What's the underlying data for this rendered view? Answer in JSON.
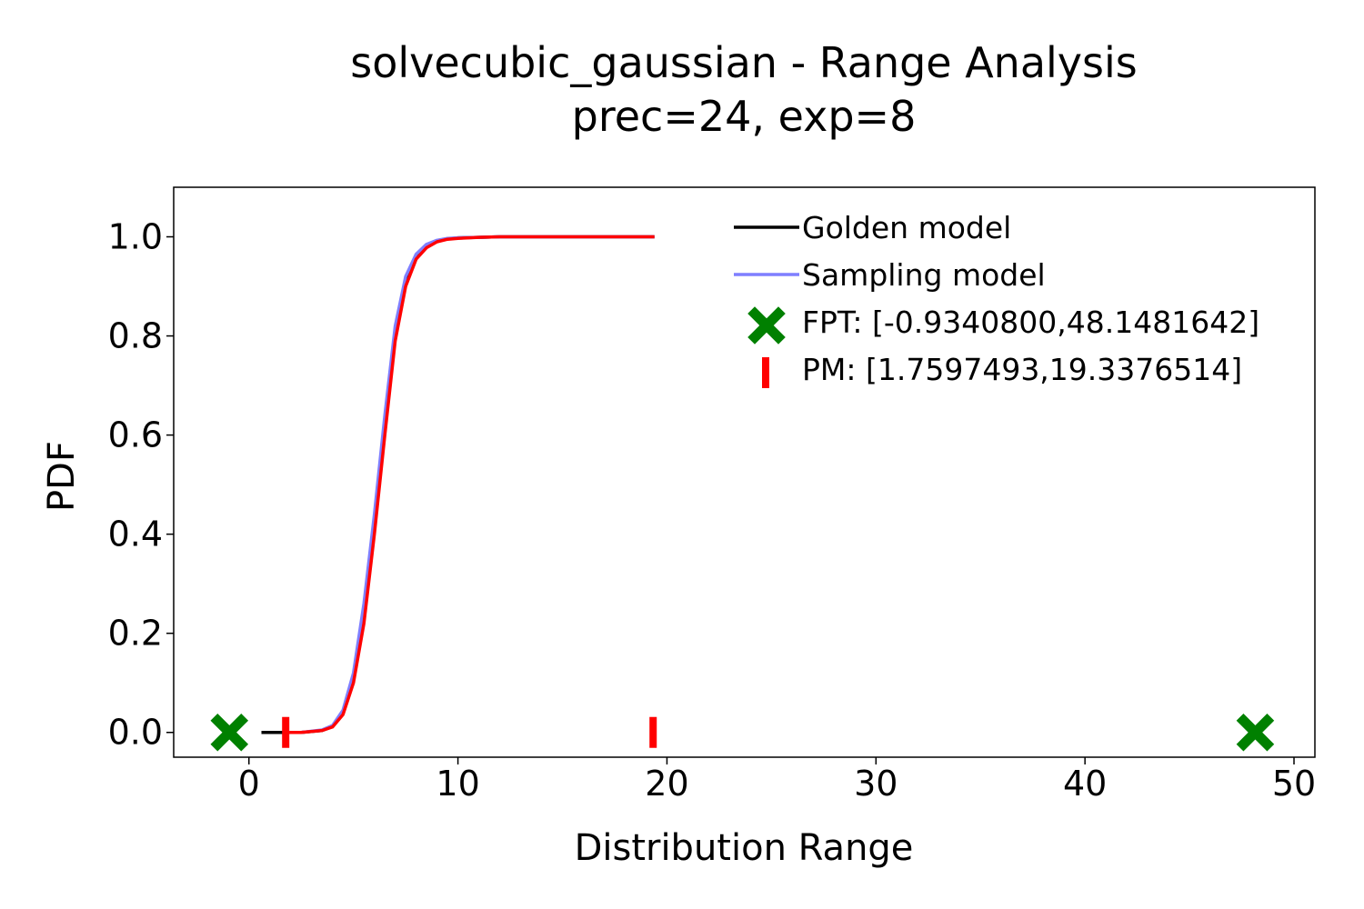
{
  "chart_data": {
    "type": "line",
    "title": "solvecubic_gaussian - Range Analysis",
    "subtitle": "prec=24, exp=8",
    "xlabel": "Distribution Range",
    "ylabel": "PDF",
    "xlim": [
      -3.6,
      51.0
    ],
    "ylim": [
      -0.05,
      1.1
    ],
    "xticks": [
      0,
      10,
      20,
      30,
      40,
      50
    ],
    "xtick_labels": [
      "0",
      "10",
      "20",
      "30",
      "40",
      "50"
    ],
    "yticks": [
      0.0,
      0.2,
      0.4,
      0.6,
      0.8,
      1.0
    ],
    "ytick_labels": [
      "0.0",
      "0.2",
      "0.4",
      "0.6",
      "0.8",
      "1.0"
    ],
    "grid": false,
    "legend_position": "top-right",
    "series": [
      {
        "name": "Golden model",
        "color": "#000000",
        "x": [
          0.6,
          1.5,
          2.5,
          3.5,
          4.0,
          4.5,
          5.0,
          5.5,
          6.0,
          6.5,
          7.0,
          7.5,
          8.0,
          8.5,
          9.0,
          9.5,
          10.0,
          11.0,
          12.0,
          14.0,
          16.0,
          19.4
        ],
        "y": [
          0.0,
          0.0,
          0.0,
          0.004,
          0.012,
          0.04,
          0.11,
          0.24,
          0.42,
          0.62,
          0.8,
          0.91,
          0.96,
          0.982,
          0.991,
          0.996,
          0.998,
          0.999,
          1.0,
          1.0,
          1.0,
          1.0
        ]
      },
      {
        "name": "Sampling model",
        "color": "#7f7fff",
        "x": [
          1.8,
          2.5,
          3.5,
          4.0,
          4.5,
          5.0,
          5.5,
          6.0,
          6.5,
          7.0,
          7.5,
          8.0,
          8.5,
          9.0,
          9.5,
          10.0,
          11.0,
          12.0,
          14.0,
          16.0,
          19.4
        ],
        "y": [
          0.0,
          0.0,
          0.005,
          0.014,
          0.045,
          0.12,
          0.26,
          0.44,
          0.64,
          0.82,
          0.92,
          0.965,
          0.985,
          0.993,
          0.997,
          0.998,
          0.999,
          1.0,
          1.0,
          1.0,
          1.0
        ]
      },
      {
        "name": "",
        "color": "#ff0000",
        "x": [
          1.8,
          2.5,
          3.5,
          4.0,
          4.5,
          5.0,
          5.5,
          6.0,
          6.5,
          7.0,
          7.5,
          8.0,
          8.5,
          9.0,
          9.5,
          10.0,
          11.0,
          12.0,
          14.0,
          16.0,
          19.4
        ],
        "y": [
          0.0,
          0.0,
          0.004,
          0.011,
          0.036,
          0.1,
          0.22,
          0.4,
          0.6,
          0.79,
          0.9,
          0.955,
          0.978,
          0.99,
          0.995,
          0.997,
          0.999,
          1.0,
          1.0,
          1.0,
          1.0
        ]
      }
    ],
    "markers": [
      {
        "name": "FPT: [-0.9340800,48.1481642]",
        "shape": "x-cross",
        "color": "#008000",
        "x": [
          -0.93408,
          48.1481642
        ],
        "y": [
          0.0,
          0.0
        ]
      },
      {
        "name": "PM: [1.7597493,19.3376514]",
        "shape": "vline",
        "color": "#ff0000",
        "x": [
          1.7597493,
          19.3376514
        ],
        "y": [
          0.0,
          0.0
        ]
      }
    ]
  }
}
